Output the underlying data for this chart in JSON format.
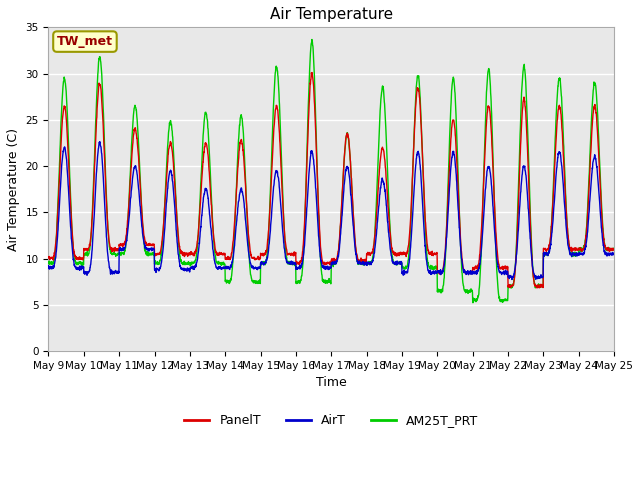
{
  "title": "Air Temperature",
  "ylabel": "Air Temperature (C)",
  "xlabel": "Time",
  "annotation": "TW_met",
  "ylim": [
    0,
    35
  ],
  "yticks": [
    0,
    5,
    10,
    15,
    20,
    25,
    30,
    35
  ],
  "legend_labels": [
    "PanelT",
    "AirT",
    "AM25T_PRT"
  ],
  "line_colors": [
    "#dd0000",
    "#0000cc",
    "#00cc00"
  ],
  "plot_bg_color": "#e8e8e8",
  "fig_bg_color": "#ffffff",
  "n_days": 16,
  "start_day": 9,
  "pts_per_day": 144,
  "panel_peaks": [
    26.5,
    28.9,
    24.0,
    22.5,
    22.5,
    22.8,
    26.5,
    30.0,
    23.5,
    22.0,
    28.5,
    25.0,
    26.5,
    27.2,
    26.5,
    26.5
  ],
  "air_peaks": [
    22.0,
    22.5,
    20.0,
    19.5,
    17.5,
    17.5,
    19.5,
    21.5,
    20.0,
    18.5,
    21.5,
    21.5,
    20.0,
    20.0,
    21.5,
    21.0
  ],
  "am25_peaks": [
    29.5,
    31.8,
    26.5,
    24.8,
    25.8,
    25.5,
    30.8,
    33.5,
    23.5,
    28.5,
    29.8,
    29.5,
    30.5,
    30.8,
    29.5,
    29.0
  ],
  "night_min": [
    10.0,
    11.0,
    11.5,
    10.5,
    10.5,
    10.0,
    10.5,
    9.5,
    9.8,
    10.5,
    10.5,
    8.5,
    9.0,
    7.0,
    11.0,
    11.0
  ],
  "am25_night": [
    9.5,
    10.5,
    10.5,
    9.5,
    9.5,
    7.5,
    9.5,
    7.5,
    9.5,
    9.5,
    9.0,
    6.5,
    5.5,
    7.0,
    10.5,
    11.0
  ],
  "air_night": [
    9.0,
    8.5,
    11.0,
    8.8,
    9.0,
    9.0,
    9.5,
    9.0,
    9.5,
    9.5,
    8.5,
    8.5,
    8.5,
    8.0,
    10.5,
    10.5
  ]
}
